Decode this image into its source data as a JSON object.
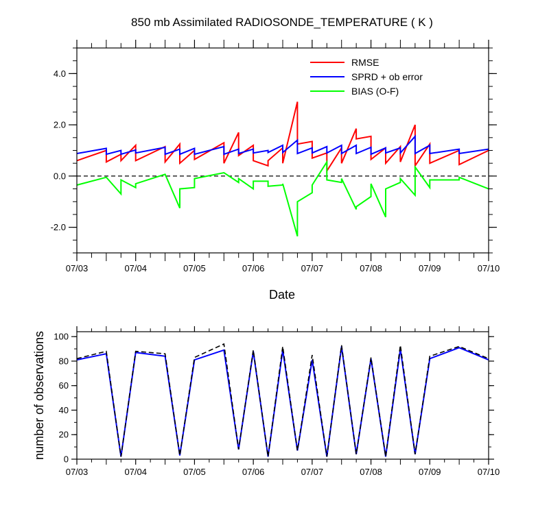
{
  "chart_data": [
    {
      "type": "line",
      "title": "850 mb Assimilated RADIOSONDE_TEMPERATURE ( K )",
      "xlabel": "Date",
      "ylabel": "",
      "x_ticks": [
        "07/03",
        "07/04",
        "07/05",
        "07/06",
        "07/07",
        "07/08",
        "07/09",
        "07/10"
      ],
      "y_ticks": [
        "-2.0",
        "0.0",
        "2.0",
        "4.0"
      ],
      "xlim": [
        0,
        7
      ],
      "ylim": [
        -3.0,
        5.0
      ],
      "legend_position": "top-right",
      "grid": false,
      "reference_line": {
        "y": 0,
        "style": "dashed"
      },
      "series": [
        {
          "name": "RMSE",
          "color": "#ff0000",
          "x": [
            0,
            0.5,
            0.5,
            0.75,
            0.75,
            1.0,
            1.0,
            1.5,
            1.5,
            1.75,
            1.75,
            2.0,
            2.0,
            2.5,
            2.5,
            2.75,
            2.75,
            3.0,
            3.0,
            3.25,
            3.25,
            3.5,
            3.5,
            3.75,
            3.75,
            4.0,
            4.0,
            4.25,
            4.25,
            4.5,
            4.5,
            4.75,
            4.75,
            5.0,
            5.0,
            5.25,
            5.25,
            5.5,
            5.5,
            5.75,
            5.75,
            6.0,
            6.0,
            6.5,
            6.5,
            7.0
          ],
          "values": [
            0.6,
            1.0,
            0.55,
            0.85,
            0.6,
            1.2,
            0.6,
            1.15,
            0.55,
            1.25,
            0.5,
            1.0,
            0.65,
            1.3,
            0.5,
            1.7,
            0.8,
            1.2,
            0.6,
            0.4,
            0.6,
            1.1,
            0.5,
            2.9,
            1.25,
            1.35,
            0.7,
            0.9,
            0.2,
            1.1,
            0.5,
            1.85,
            1.45,
            1.55,
            0.65,
            1.1,
            0.5,
            1.15,
            0.55,
            2.0,
            0.4,
            1.25,
            0.5,
            1.0,
            0.45,
            1.0
          ]
        },
        {
          "name": "SPRD + ob error",
          "color": "#0000ff",
          "x": [
            0,
            0.5,
            0.5,
            0.75,
            0.75,
            1.0,
            1.0,
            1.5,
            1.5,
            1.75,
            1.75,
            2.0,
            2.0,
            2.5,
            2.5,
            2.75,
            2.75,
            3.0,
            3.0,
            3.25,
            3.25,
            3.5,
            3.5,
            3.75,
            3.75,
            4.0,
            4.0,
            4.25,
            4.25,
            4.5,
            4.5,
            4.75,
            4.75,
            5.0,
            5.0,
            5.25,
            5.25,
            5.5,
            5.5,
            5.75,
            5.75,
            6.0,
            6.0,
            6.5,
            6.5,
            7.0
          ],
          "values": [
            0.88,
            1.08,
            0.85,
            1.0,
            0.85,
            1.02,
            0.9,
            1.12,
            0.85,
            1.05,
            0.85,
            1.08,
            0.85,
            1.15,
            0.85,
            1.05,
            0.88,
            1.05,
            0.9,
            1.0,
            0.92,
            1.2,
            0.92,
            1.4,
            0.88,
            1.1,
            0.9,
            1.15,
            0.9,
            1.2,
            0.88,
            1.2,
            0.88,
            1.12,
            0.85,
            1.1,
            0.9,
            1.1,
            0.9,
            1.55,
            0.88,
            1.2,
            0.88,
            1.05,
            0.88,
            1.05
          ]
        },
        {
          "name": "BIAS (O-F)",
          "color": "#00ff00",
          "x": [
            0,
            0.5,
            0.75,
            0.75,
            1.0,
            1.0,
            1.5,
            1.75,
            1.75,
            2.0,
            2.0,
            2.5,
            2.75,
            2.75,
            3.0,
            3.0,
            3.25,
            3.25,
            3.5,
            3.5,
            3.75,
            3.75,
            4.0,
            4.0,
            4.25,
            4.25,
            4.5,
            4.5,
            4.75,
            4.75,
            5.0,
            5.0,
            5.25,
            5.25,
            5.5,
            5.5,
            5.75,
            5.75,
            6.0,
            6.0,
            6.5,
            6.5,
            7.0
          ],
          "values": [
            -0.35,
            -0.05,
            -0.7,
            -0.15,
            -0.45,
            -0.3,
            0.07,
            -1.25,
            -0.5,
            -0.45,
            -0.1,
            0.13,
            -0.25,
            -0.1,
            -0.5,
            -0.2,
            -0.2,
            -0.4,
            -0.35,
            -0.3,
            -2.35,
            -1.0,
            -0.65,
            -0.35,
            0.55,
            -0.15,
            -0.25,
            -0.1,
            -1.3,
            -1.2,
            -0.8,
            -0.3,
            -1.6,
            -0.5,
            -0.25,
            -0.1,
            -0.75,
            0.35,
            -0.45,
            -0.15,
            -0.15,
            -0.05,
            -0.5
          ]
        }
      ]
    },
    {
      "type": "line",
      "title": "",
      "xlabel": "",
      "ylabel": "number of observations",
      "x_ticks": [
        "07/03",
        "07/04",
        "07/05",
        "07/06",
        "07/07",
        "07/08",
        "07/09",
        "07/10"
      ],
      "y_ticks": [
        "0",
        "20",
        "40",
        "60",
        "80",
        "100"
      ],
      "xlim": [
        0,
        7
      ],
      "ylim": [
        0,
        104
      ],
      "grid": false,
      "series": [
        {
          "color": "#0000ff",
          "style": "solid",
          "x": [
            0,
            0.5,
            0.75,
            1.0,
            1.5,
            1.75,
            2.0,
            2.5,
            2.75,
            3.0,
            3.25,
            3.5,
            3.75,
            4.0,
            4.25,
            4.5,
            4.75,
            5.0,
            5.25,
            5.5,
            5.75,
            6.0,
            6.5,
            7.0
          ],
          "values": [
            81,
            86,
            2,
            87,
            84,
            3,
            81,
            89,
            8,
            88,
            2,
            89,
            7,
            81,
            2,
            92,
            4,
            82,
            2,
            90,
            4,
            82,
            91,
            81
          ]
        },
        {
          "color": "#000000",
          "style": "dashed",
          "x": [
            0,
            0.5,
            0.75,
            1.0,
            1.5,
            1.75,
            2.0,
            2.5,
            2.75,
            3.0,
            3.25,
            3.5,
            3.75,
            4.0,
            4.25,
            4.5,
            4.75,
            5.0,
            5.25,
            5.5,
            5.75,
            6.0,
            6.5,
            7.0
          ],
          "values": [
            82,
            88,
            2,
            88,
            86,
            3,
            83,
            94,
            8,
            89,
            2,
            92,
            7,
            85,
            2,
            93,
            4,
            83,
            2,
            93,
            4,
            84,
            92,
            82
          ]
        }
      ]
    }
  ]
}
